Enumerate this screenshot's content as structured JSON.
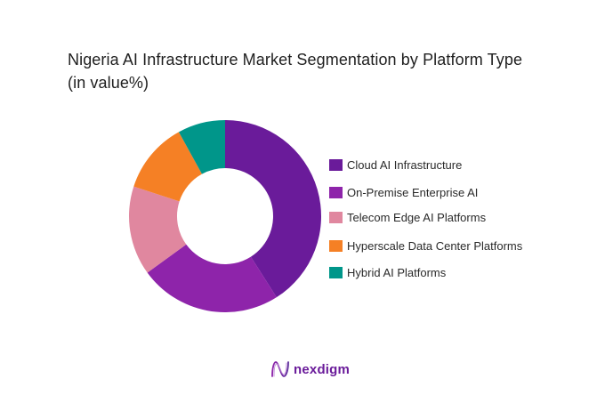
{
  "title": {
    "line1": "Nigeria AI Infrastructure Market Segmentation by Platform Type",
    "line2": "(in value%)"
  },
  "chart_data": {
    "type": "pie",
    "subtype": "donut",
    "title": "Nigeria AI Infrastructure Market Segmentation by Platform Type (in value%)",
    "categories": [
      "Cloud AI Infrastructure",
      "On-Premise Enterprise AI",
      "Telecom Edge AI Platforms",
      "Hyperscale Data Center Platforms",
      "Hybrid AI Platforms"
    ],
    "values": [
      41,
      24,
      15,
      12,
      8
    ],
    "colors": [
      "#6A1B9A",
      "#8E24AA",
      "#E0879F",
      "#F58025",
      "#00968A"
    ],
    "unit": "%",
    "start_angle_deg": 0,
    "direction": "clockwise",
    "legend_position": "right",
    "data_labels": false
  },
  "legend": {
    "items": [
      {
        "label": "Cloud AI Infrastructure",
        "color": "#6A1B9A"
      },
      {
        "label": "On-Premise Enterprise AI",
        "color": "#8E24AA"
      },
      {
        "label": "Telecom Edge AI Platforms",
        "color": "#E0879F"
      },
      {
        "label": "Hyperscale Data Center Platforms",
        "color": "#F58025"
      },
      {
        "label": "Hybrid AI Platforms",
        "color": "#00968A"
      }
    ]
  },
  "branding": {
    "logo_text": "nexdigm",
    "icon": "nexdigm-wave-logo-icon",
    "color": "#6A1B9A"
  }
}
